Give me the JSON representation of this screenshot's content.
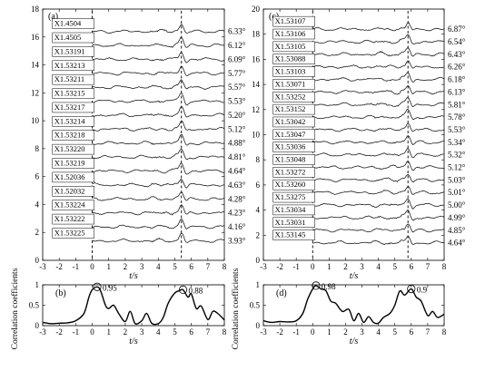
{
  "chart_data": [
    {
      "type": "line",
      "panel": "(a)",
      "xlabel": "t/s",
      "xlim": [
        -3,
        8
      ],
      "ylim": [
        0,
        18
      ],
      "xticks": [
        -3,
        -2,
        -1,
        0,
        1,
        2,
        3,
        4,
        5,
        6,
        7,
        8
      ],
      "yticks": [
        0,
        2,
        4,
        6,
        8,
        10,
        12,
        14,
        16,
        18
      ],
      "dashed_x": [
        0,
        5.4
      ],
      "stations": [
        {
          "name": "X1.4504",
          "angle": "6.33°"
        },
        {
          "name": "X1.4505",
          "angle": "6.12°"
        },
        {
          "name": "X1.53191",
          "angle": "6.09°"
        },
        {
          "name": "X1.53213",
          "angle": "5.77°"
        },
        {
          "name": "X1.53211",
          "angle": "5.57°"
        },
        {
          "name": "X1.53215",
          "angle": "5.53°"
        },
        {
          "name": "X1.53217",
          "angle": "5.20°"
        },
        {
          "name": "X1.53214",
          "angle": "5.12°"
        },
        {
          "name": "X1.53218",
          "angle": "4.88°"
        },
        {
          "name": "X1.53220",
          "angle": "4.81°"
        },
        {
          "name": "X1.53219",
          "angle": "4.64°"
        },
        {
          "name": "X1.52036",
          "angle": "4.63°"
        },
        {
          "name": "X1.52032",
          "angle": "4.28°"
        },
        {
          "name": "X1.53224",
          "angle": "4.23°"
        },
        {
          "name": "X1.53222",
          "angle": "4.16°"
        },
        {
          "name": "X1.53225",
          "angle": "3.93°"
        }
      ]
    },
    {
      "type": "line",
      "panel": "(b)",
      "xlabel": "t/s",
      "ylabel": "Correlation coefficients",
      "xlim": [
        -3,
        8
      ],
      "ylim": [
        0,
        1
      ],
      "xticks": [
        -3,
        -2,
        -1,
        0,
        1,
        2,
        3,
        4,
        5,
        6,
        7,
        8
      ],
      "yticks": [
        0,
        0.5,
        1
      ],
      "ytick_labels": [
        "0",
        "0.5",
        "1"
      ],
      "x": [
        -3,
        -2.5,
        -2,
        -1.5,
        -1,
        -0.5,
        -0.2,
        0,
        0.3,
        0.5,
        0.8,
        1,
        1.3,
        1.6,
        2,
        2.3,
        2.6,
        3,
        3.3,
        3.6,
        4,
        4.3,
        4.6,
        5,
        5.3,
        5.5,
        5.8,
        6,
        6.3,
        6.6,
        7,
        7.3,
        7.6,
        8
      ],
      "y": [
        0.08,
        0.05,
        0.06,
        0.07,
        0.12,
        0.3,
        0.7,
        0.88,
        0.95,
        0.86,
        0.5,
        0.42,
        0.5,
        0.3,
        0.1,
        0.35,
        0.05,
        0.12,
        0.3,
        0.06,
        0.05,
        0.2,
        0.55,
        0.8,
        0.86,
        0.88,
        0.7,
        0.78,
        0.42,
        0.48,
        0.15,
        0.35,
        0.3,
        0.14
      ],
      "peaks": [
        {
          "x": 0.3,
          "y": 0.95,
          "label": "0.95"
        },
        {
          "x": 5.5,
          "y": 0.88,
          "label": "0.88"
        }
      ]
    },
    {
      "type": "line",
      "panel": "(c)",
      "xlabel": "t/s",
      "xlim": [
        -3,
        8
      ],
      "ylim": [
        0,
        20
      ],
      "xticks": [
        -3,
        -2,
        -1,
        0,
        1,
        2,
        3,
        4,
        5,
        6,
        7,
        8
      ],
      "yticks": [
        0,
        2,
        4,
        6,
        8,
        10,
        12,
        14,
        16,
        18,
        20
      ],
      "dashed_x": [
        0,
        5.8
      ],
      "stations": [
        {
          "name": "X1.53107",
          "angle": "6.87°"
        },
        {
          "name": "X1.53106",
          "angle": "6.54°"
        },
        {
          "name": "X1.53105",
          "angle": "6.43°"
        },
        {
          "name": "X1.53088",
          "angle": "6.26°"
        },
        {
          "name": "X1.53103",
          "angle": "6.18°"
        },
        {
          "name": "X1.53071",
          "angle": "6.13°"
        },
        {
          "name": "X1.53252",
          "angle": "5.81°"
        },
        {
          "name": "X1.53152",
          "angle": "5.78°"
        },
        {
          "name": "X1.53042",
          "angle": "5.53°"
        },
        {
          "name": "X1.53047",
          "angle": "5.34°"
        },
        {
          "name": "X1.53036",
          "angle": "5.32°"
        },
        {
          "name": "X1.53048",
          "angle": "5.12°"
        },
        {
          "name": "X1.53272",
          "angle": "5.03°"
        },
        {
          "name": "X1.53260",
          "angle": "5.01°"
        },
        {
          "name": "X1.53275",
          "angle": "5.00°"
        },
        {
          "name": "X1.53034",
          "angle": "4.99°"
        },
        {
          "name": "X1.53031",
          "angle": "4.85°"
        },
        {
          "name": "X1.53145",
          "angle": "4.64°"
        }
      ]
    },
    {
      "type": "line",
      "panel": "(d)",
      "xlabel": "t/s",
      "ylabel": "Correlation coefficients",
      "xlim": [
        -3,
        8
      ],
      "ylim": [
        0,
        1
      ],
      "xticks": [
        -3,
        -2,
        -1,
        0,
        1,
        2,
        3,
        4,
        5,
        6,
        7,
        8
      ],
      "yticks": [
        0,
        0.5,
        1
      ],
      "ytick_labels": [
        "0",
        "0.5",
        "1"
      ],
      "x": [
        -3,
        -2.5,
        -2,
        -1.5,
        -1,
        -0.6,
        -0.3,
        0,
        0.2,
        0.5,
        0.8,
        1.1,
        1.4,
        1.8,
        2.2,
        2.5,
        2.8,
        3.1,
        3.4,
        3.7,
        4,
        4.3,
        4.7,
        5,
        5.3,
        5.6,
        6,
        6.3,
        6.6,
        7,
        7.3,
        7.6,
        8
      ],
      "y": [
        0.12,
        0.08,
        0.1,
        0.09,
        0.12,
        0.3,
        0.65,
        0.9,
        0.98,
        0.9,
        0.86,
        0.6,
        0.55,
        0.35,
        0.4,
        0.12,
        0.3,
        0.08,
        0.22,
        0.08,
        0.06,
        0.2,
        0.3,
        0.5,
        0.85,
        0.75,
        0.9,
        0.7,
        0.6,
        0.25,
        0.35,
        0.2,
        0.28
      ],
      "peaks": [
        {
          "x": 0.2,
          "y": 0.98,
          "label": "0.98"
        },
        {
          "x": 6.0,
          "y": 0.9,
          "label": "0.9"
        }
      ]
    }
  ]
}
